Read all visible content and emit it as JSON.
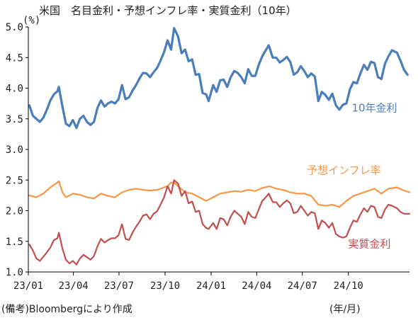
{
  "chart_data": {
    "type": "line",
    "title": "米国　名目金利・予想インフレ率・実質金利（10年）",
    "y_unit_label": "(%)",
    "x_unit_label": "(年/月)",
    "source_note": "(備考)Bloombergにより作成",
    "ylim": [
      1.0,
      5.0
    ],
    "y_ticks": [
      "5.0",
      "4.5",
      "4.0",
      "3.5",
      "3.0",
      "2.5",
      "2.0",
      "1.5",
      "1.0"
    ],
    "x_ticks": [
      "23/01",
      "23/04",
      "23/07",
      "23/10",
      "24/01",
      "24/04",
      "24/07",
      "24/10"
    ],
    "x_tick_dates": [
      "2023-01-01",
      "2023-04-01",
      "2023-07-01",
      "2023-10-01",
      "2024-01-01",
      "2024-04-01",
      "2024-07-01",
      "2024-10-01"
    ],
    "xlim": [
      "2023-01-01",
      "2025-01-31"
    ],
    "grid": false,
    "series": [
      {
        "name": "10年金利",
        "color": "#4a7ebb",
        "points": [
          [
            "2023-01-03",
            3.72
          ],
          [
            "2023-01-10",
            3.55
          ],
          [
            "2023-01-17",
            3.5
          ],
          [
            "2023-01-24",
            3.45
          ],
          [
            "2023-01-31",
            3.52
          ],
          [
            "2023-02-07",
            3.65
          ],
          [
            "2023-02-14",
            3.8
          ],
          [
            "2023-02-21",
            3.9
          ],
          [
            "2023-02-28",
            3.95
          ],
          [
            "2023-03-03",
            4.02
          ],
          [
            "2023-03-10",
            3.7
          ],
          [
            "2023-03-17",
            3.42
          ],
          [
            "2023-03-24",
            3.38
          ],
          [
            "2023-03-31",
            3.48
          ],
          [
            "2023-04-07",
            3.35
          ],
          [
            "2023-04-14",
            3.5
          ],
          [
            "2023-04-21",
            3.55
          ],
          [
            "2023-04-28",
            3.45
          ],
          [
            "2023-05-05",
            3.4
          ],
          [
            "2023-05-12",
            3.45
          ],
          [
            "2023-05-19",
            3.68
          ],
          [
            "2023-05-26",
            3.8
          ],
          [
            "2023-06-02",
            3.7
          ],
          [
            "2023-06-09",
            3.75
          ],
          [
            "2023-06-16",
            3.78
          ],
          [
            "2023-06-23",
            3.75
          ],
          [
            "2023-06-30",
            3.82
          ],
          [
            "2023-07-07",
            4.05
          ],
          [
            "2023-07-14",
            3.82
          ],
          [
            "2023-07-21",
            3.85
          ],
          [
            "2023-07-28",
            3.96
          ],
          [
            "2023-08-04",
            4.05
          ],
          [
            "2023-08-11",
            4.16
          ],
          [
            "2023-08-18",
            4.25
          ],
          [
            "2023-08-25",
            4.24
          ],
          [
            "2023-09-01",
            4.18
          ],
          [
            "2023-09-08",
            4.26
          ],
          [
            "2023-09-15",
            4.33
          ],
          [
            "2023-09-22",
            4.45
          ],
          [
            "2023-09-29",
            4.59
          ],
          [
            "2023-10-06",
            4.78
          ],
          [
            "2023-10-13",
            4.63
          ],
          [
            "2023-10-19",
            4.98
          ],
          [
            "2023-10-27",
            4.84
          ],
          [
            "2023-11-03",
            4.57
          ],
          [
            "2023-11-10",
            4.63
          ],
          [
            "2023-11-17",
            4.44
          ],
          [
            "2023-11-24",
            4.47
          ],
          [
            "2023-12-01",
            4.22
          ],
          [
            "2023-12-08",
            4.23
          ],
          [
            "2023-12-15",
            3.92
          ],
          [
            "2023-12-22",
            3.9
          ],
          [
            "2023-12-27",
            3.79
          ],
          [
            "2024-01-05",
            4.05
          ],
          [
            "2024-01-12",
            3.94
          ],
          [
            "2024-01-19",
            4.13
          ],
          [
            "2024-01-26",
            4.14
          ],
          [
            "2024-02-02",
            4.02
          ],
          [
            "2024-02-09",
            4.18
          ],
          [
            "2024-02-16",
            4.28
          ],
          [
            "2024-02-23",
            4.25
          ],
          [
            "2024-03-01",
            4.18
          ],
          [
            "2024-03-08",
            4.08
          ],
          [
            "2024-03-15",
            4.31
          ],
          [
            "2024-03-22",
            4.2
          ],
          [
            "2024-03-29",
            4.2
          ],
          [
            "2024-04-05",
            4.38
          ],
          [
            "2024-04-12",
            4.52
          ],
          [
            "2024-04-19",
            4.62
          ],
          [
            "2024-04-25",
            4.7
          ],
          [
            "2024-05-03",
            4.5
          ],
          [
            "2024-05-10",
            4.5
          ],
          [
            "2024-05-17",
            4.42
          ],
          [
            "2024-05-24",
            4.46
          ],
          [
            "2024-05-31",
            4.51
          ],
          [
            "2024-06-07",
            4.43
          ],
          [
            "2024-06-14",
            4.22
          ],
          [
            "2024-06-21",
            4.26
          ],
          [
            "2024-06-28",
            4.36
          ],
          [
            "2024-07-05",
            4.28
          ],
          [
            "2024-07-12",
            4.18
          ],
          [
            "2024-07-19",
            4.24
          ],
          [
            "2024-07-26",
            4.19
          ],
          [
            "2024-08-02",
            3.79
          ],
          [
            "2024-08-09",
            3.94
          ],
          [
            "2024-08-16",
            3.89
          ],
          [
            "2024-08-23",
            3.81
          ],
          [
            "2024-08-30",
            3.91
          ],
          [
            "2024-09-06",
            3.72
          ],
          [
            "2024-09-13",
            3.65
          ],
          [
            "2024-09-20",
            3.73
          ],
          [
            "2024-09-27",
            3.75
          ],
          [
            "2024-10-04",
            3.98
          ],
          [
            "2024-10-11",
            4.1
          ],
          [
            "2024-10-18",
            4.08
          ],
          [
            "2024-10-25",
            4.24
          ],
          [
            "2024-11-01",
            4.38
          ],
          [
            "2024-11-08",
            4.3
          ],
          [
            "2024-11-15",
            4.43
          ],
          [
            "2024-11-22",
            4.41
          ],
          [
            "2024-11-29",
            4.18
          ],
          [
            "2024-12-06",
            4.15
          ],
          [
            "2024-12-13",
            4.4
          ],
          [
            "2024-12-20",
            4.52
          ],
          [
            "2024-12-27",
            4.62
          ],
          [
            "2025-01-06",
            4.58
          ],
          [
            "2025-01-13",
            4.45
          ],
          [
            "2025-01-20",
            4.3
          ],
          [
            "2025-01-27",
            4.22
          ]
        ]
      },
      {
        "name": "予想インフレ率",
        "color": "#f79646",
        "points": [
          [
            "2023-01-03",
            2.25
          ],
          [
            "2023-01-17",
            2.22
          ],
          [
            "2023-01-31",
            2.28
          ],
          [
            "2023-02-14",
            2.38
          ],
          [
            "2023-02-28",
            2.46
          ],
          [
            "2023-03-03",
            2.48
          ],
          [
            "2023-03-10",
            2.3
          ],
          [
            "2023-03-17",
            2.22
          ],
          [
            "2023-03-31",
            2.28
          ],
          [
            "2023-04-14",
            2.26
          ],
          [
            "2023-04-28",
            2.22
          ],
          [
            "2023-05-12",
            2.2
          ],
          [
            "2023-05-26",
            2.28
          ],
          [
            "2023-06-09",
            2.24
          ],
          [
            "2023-06-23",
            2.22
          ],
          [
            "2023-07-07",
            2.3
          ],
          [
            "2023-07-21",
            2.34
          ],
          [
            "2023-08-04",
            2.36
          ],
          [
            "2023-08-18",
            2.34
          ],
          [
            "2023-09-01",
            2.33
          ],
          [
            "2023-09-15",
            2.34
          ],
          [
            "2023-09-29",
            2.38
          ],
          [
            "2023-10-06",
            2.4
          ],
          [
            "2023-10-13",
            2.46
          ],
          [
            "2023-10-19",
            2.46
          ],
          [
            "2023-10-27",
            2.4
          ],
          [
            "2023-11-10",
            2.3
          ],
          [
            "2023-11-24",
            2.28
          ],
          [
            "2023-12-08",
            2.22
          ],
          [
            "2023-12-22",
            2.16
          ],
          [
            "2024-01-05",
            2.22
          ],
          [
            "2024-01-19",
            2.28
          ],
          [
            "2024-02-02",
            2.3
          ],
          [
            "2024-02-16",
            2.32
          ],
          [
            "2024-03-01",
            2.31
          ],
          [
            "2024-03-15",
            2.34
          ],
          [
            "2024-03-29",
            2.32
          ],
          [
            "2024-04-12",
            2.37
          ],
          [
            "2024-04-26",
            2.4
          ],
          [
            "2024-05-10",
            2.36
          ],
          [
            "2024-05-24",
            2.34
          ],
          [
            "2024-06-07",
            2.3
          ],
          [
            "2024-06-21",
            2.28
          ],
          [
            "2024-07-05",
            2.28
          ],
          [
            "2024-07-19",
            2.24
          ],
          [
            "2024-08-02",
            2.1
          ],
          [
            "2024-08-16",
            2.08
          ],
          [
            "2024-08-30",
            2.1
          ],
          [
            "2024-09-13",
            2.06
          ],
          [
            "2024-09-27",
            2.16
          ],
          [
            "2024-10-11",
            2.24
          ],
          [
            "2024-10-25",
            2.28
          ],
          [
            "2024-11-08",
            2.32
          ],
          [
            "2024-11-22",
            2.36
          ],
          [
            "2024-12-06",
            2.28
          ],
          [
            "2024-12-20",
            2.36
          ],
          [
            "2025-01-06",
            2.38
          ],
          [
            "2025-01-20",
            2.33
          ],
          [
            "2025-01-31",
            2.3
          ]
        ]
      },
      {
        "name": "実質金利",
        "color": "#c0504d",
        "points": [
          [
            "2023-01-03",
            1.45
          ],
          [
            "2023-01-10",
            1.35
          ],
          [
            "2023-01-17",
            1.22
          ],
          [
            "2023-01-24",
            1.18
          ],
          [
            "2023-01-31",
            1.25
          ],
          [
            "2023-02-07",
            1.32
          ],
          [
            "2023-02-14",
            1.4
          ],
          [
            "2023-02-21",
            1.52
          ],
          [
            "2023-02-28",
            1.55
          ],
          [
            "2023-03-03",
            1.64
          ],
          [
            "2023-03-10",
            1.38
          ],
          [
            "2023-03-17",
            1.2
          ],
          [
            "2023-03-24",
            1.14
          ],
          [
            "2023-03-31",
            1.18
          ],
          [
            "2023-04-07",
            1.12
          ],
          [
            "2023-04-14",
            1.22
          ],
          [
            "2023-04-21",
            1.28
          ],
          [
            "2023-04-28",
            1.24
          ],
          [
            "2023-05-05",
            1.2
          ],
          [
            "2023-05-12",
            1.26
          ],
          [
            "2023-05-19",
            1.42
          ],
          [
            "2023-05-26",
            1.54
          ],
          [
            "2023-06-02",
            1.48
          ],
          [
            "2023-06-09",
            1.52
          ],
          [
            "2023-06-16",
            1.55
          ],
          [
            "2023-06-23",
            1.55
          ],
          [
            "2023-06-30",
            1.6
          ],
          [
            "2023-07-07",
            1.78
          ],
          [
            "2023-07-14",
            1.54
          ],
          [
            "2023-07-21",
            1.52
          ],
          [
            "2023-07-28",
            1.64
          ],
          [
            "2023-08-04",
            1.74
          ],
          [
            "2023-08-11",
            1.82
          ],
          [
            "2023-08-18",
            1.92
          ],
          [
            "2023-08-25",
            1.94
          ],
          [
            "2023-09-01",
            1.86
          ],
          [
            "2023-09-08",
            1.95
          ],
          [
            "2023-09-15",
            1.99
          ],
          [
            "2023-09-22",
            2.1
          ],
          [
            "2023-09-29",
            2.22
          ],
          [
            "2023-10-06",
            2.4
          ],
          [
            "2023-10-13",
            2.28
          ],
          [
            "2023-10-19",
            2.5
          ],
          [
            "2023-10-27",
            2.44
          ],
          [
            "2023-11-03",
            2.24
          ],
          [
            "2023-11-10",
            2.32
          ],
          [
            "2023-11-17",
            2.12
          ],
          [
            "2023-11-24",
            2.15
          ],
          [
            "2023-12-01",
            1.98
          ],
          [
            "2023-12-08",
            2.0
          ],
          [
            "2023-12-15",
            1.78
          ],
          [
            "2023-12-22",
            1.72
          ],
          [
            "2023-12-27",
            1.7
          ],
          [
            "2024-01-05",
            1.8
          ],
          [
            "2024-01-12",
            1.7
          ],
          [
            "2024-01-19",
            1.88
          ],
          [
            "2024-01-26",
            1.86
          ],
          [
            "2024-02-02",
            1.76
          ],
          [
            "2024-02-09",
            1.9
          ],
          [
            "2024-02-16",
            2.0
          ],
          [
            "2024-02-23",
            1.95
          ],
          [
            "2024-03-01",
            1.9
          ],
          [
            "2024-03-08",
            1.78
          ],
          [
            "2024-03-15",
            1.98
          ],
          [
            "2024-03-22",
            1.9
          ],
          [
            "2024-03-29",
            1.88
          ],
          [
            "2024-04-05",
            2.02
          ],
          [
            "2024-04-12",
            2.16
          ],
          [
            "2024-04-19",
            2.22
          ],
          [
            "2024-04-25",
            2.28
          ],
          [
            "2024-05-03",
            2.14
          ],
          [
            "2024-05-10",
            2.14
          ],
          [
            "2024-05-17",
            2.06
          ],
          [
            "2024-05-24",
            2.12
          ],
          [
            "2024-05-31",
            2.17
          ],
          [
            "2024-06-07",
            2.12
          ],
          [
            "2024-06-14",
            1.96
          ],
          [
            "2024-06-21",
            1.98
          ],
          [
            "2024-06-28",
            2.08
          ],
          [
            "2024-07-05",
            2.0
          ],
          [
            "2024-07-12",
            1.92
          ],
          [
            "2024-07-19",
            1.98
          ],
          [
            "2024-07-26",
            1.96
          ],
          [
            "2024-08-02",
            1.7
          ],
          [
            "2024-08-09",
            1.84
          ],
          [
            "2024-08-16",
            1.8
          ],
          [
            "2024-08-23",
            1.72
          ],
          [
            "2024-08-30",
            1.8
          ],
          [
            "2024-09-06",
            1.62
          ],
          [
            "2024-09-13",
            1.58
          ],
          [
            "2024-09-20",
            1.56
          ],
          [
            "2024-09-27",
            1.58
          ],
          [
            "2024-10-04",
            1.72
          ],
          [
            "2024-10-11",
            1.84
          ],
          [
            "2024-10-18",
            1.82
          ],
          [
            "2024-10-25",
            1.94
          ],
          [
            "2024-11-01",
            2.04
          ],
          [
            "2024-11-08",
            1.98
          ],
          [
            "2024-11-15",
            2.08
          ],
          [
            "2024-11-22",
            2.06
          ],
          [
            "2024-11-29",
            1.9
          ],
          [
            "2024-12-06",
            1.88
          ],
          [
            "2024-12-13",
            2.02
          ],
          [
            "2024-12-20",
            2.1
          ],
          [
            "2024-12-27",
            2.08
          ],
          [
            "2025-01-06",
            2.04
          ],
          [
            "2025-01-13",
            1.98
          ],
          [
            "2025-01-20",
            1.95
          ],
          [
            "2025-01-31",
            1.95
          ]
        ]
      }
    ]
  }
}
